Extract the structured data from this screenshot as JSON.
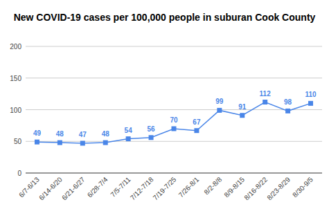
{
  "chart_data": {
    "type": "line",
    "title": "New COVID-19 cases per 100,000 people in suburan Cook County",
    "categories": [
      "6/7-6/13",
      "6/14-6/20",
      "6/21-6/27",
      "6/28-7/4",
      "7/5-7/11",
      "7/12-7/18",
      "7/19-7/25",
      "7/26-8/1",
      "8/2-8/8",
      "8/9-8/15",
      "8/16-8/22",
      "8/23-8/29",
      "8/30-9/5"
    ],
    "values": [
      49,
      48,
      47,
      48,
      54,
      56,
      70,
      67,
      99,
      91,
      112,
      98,
      110
    ],
    "color": "#4a86e8",
    "ylim": [
      0,
      200
    ],
    "yticks": [
      0,
      50,
      100,
      150,
      200
    ],
    "grid": true,
    "data_labels": true,
    "marker": "square"
  }
}
